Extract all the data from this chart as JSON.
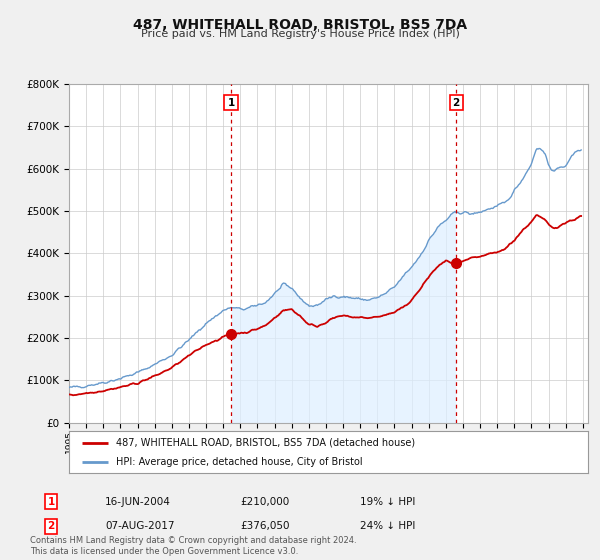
{
  "title": "487, WHITEHALL ROAD, BRISTOL, BS5 7DA",
  "subtitle": "Price paid vs. HM Land Registry's House Price Index (HPI)",
  "legend_entry1": "487, WHITEHALL ROAD, BRISTOL, BS5 7DA (detached house)",
  "legend_entry2": "HPI: Average price, detached house, City of Bristol",
  "annotation1_date": "16-JUN-2004",
  "annotation1_price": 210000,
  "annotation1_pct": "19% ↓ HPI",
  "annotation2_date": "07-AUG-2017",
  "annotation2_price": 376050,
  "annotation2_pct": "24% ↓ HPI",
  "footnote": "Contains HM Land Registry data © Crown copyright and database right 2024.\nThis data is licensed under the Open Government Licence v3.0.",
  "price_paid_color": "#cc0000",
  "hpi_color": "#6699cc",
  "hpi_fill_color": "#ddeeff",
  "background_color": "#f0f0f0",
  "plot_bg_color": "#ffffff",
  "grid_color": "#cccccc",
  "annotation_line_color": "#cc0000",
  "ylim": [
    0,
    800000
  ],
  "yticks": [
    0,
    100000,
    200000,
    300000,
    400000,
    500000,
    600000,
    700000,
    800000
  ],
  "ytick_labels": [
    "£0",
    "£100K",
    "£200K",
    "£300K",
    "£400K",
    "£500K",
    "£600K",
    "£700K",
    "£800K"
  ],
  "xmin": 1995.0,
  "xmax": 2025.3,
  "sale1_x": 2004.46,
  "sale2_x": 2017.6,
  "sale1_y": 210000,
  "sale2_y": 376050,
  "hpi_anchors": [
    [
      1995.0,
      82000
    ],
    [
      1996.0,
      88000
    ],
    [
      1997.0,
      95000
    ],
    [
      1998.0,
      105000
    ],
    [
      1999.0,
      118000
    ],
    [
      2000.0,
      138000
    ],
    [
      2001.0,
      160000
    ],
    [
      2002.0,
      195000
    ],
    [
      2003.0,
      235000
    ],
    [
      2004.0,
      265000
    ],
    [
      2004.5,
      272000
    ],
    [
      2005.0,
      268000
    ],
    [
      2005.5,
      270000
    ],
    [
      2006.0,
      278000
    ],
    [
      2006.5,
      285000
    ],
    [
      2007.0,
      305000
    ],
    [
      2007.5,
      325000
    ],
    [
      2008.0,
      318000
    ],
    [
      2008.5,
      295000
    ],
    [
      2009.0,
      275000
    ],
    [
      2009.5,
      278000
    ],
    [
      2010.0,
      290000
    ],
    [
      2010.5,
      300000
    ],
    [
      2011.0,
      298000
    ],
    [
      2011.5,
      295000
    ],
    [
      2012.0,
      292000
    ],
    [
      2012.5,
      290000
    ],
    [
      2013.0,
      295000
    ],
    [
      2013.5,
      305000
    ],
    [
      2014.0,
      320000
    ],
    [
      2014.5,
      345000
    ],
    [
      2015.0,
      368000
    ],
    [
      2015.5,
      395000
    ],
    [
      2016.0,
      430000
    ],
    [
      2016.5,
      460000
    ],
    [
      2017.0,
      478000
    ],
    [
      2017.5,
      495000
    ],
    [
      2018.0,
      498000
    ],
    [
      2018.5,
      492000
    ],
    [
      2019.0,
      498000
    ],
    [
      2019.5,
      505000
    ],
    [
      2020.0,
      510000
    ],
    [
      2020.5,
      520000
    ],
    [
      2021.0,
      548000
    ],
    [
      2021.5,
      578000
    ],
    [
      2022.0,
      612000
    ],
    [
      2022.3,
      650000
    ],
    [
      2022.5,
      648000
    ],
    [
      2022.8,
      635000
    ],
    [
      2023.0,
      608000
    ],
    [
      2023.3,
      595000
    ],
    [
      2023.6,
      598000
    ],
    [
      2024.0,
      610000
    ],
    [
      2024.3,
      625000
    ],
    [
      2024.6,
      640000
    ],
    [
      2024.9,
      648000
    ]
  ],
  "pp_anchors": [
    [
      1995.0,
      65000
    ],
    [
      1996.0,
      70000
    ],
    [
      1997.0,
      76000
    ],
    [
      1998.0,
      84000
    ],
    [
      1999.0,
      94000
    ],
    [
      2000.0,
      110000
    ],
    [
      2001.0,
      130000
    ],
    [
      2002.0,
      158000
    ],
    [
      2003.0,
      185000
    ],
    [
      2004.0,
      202000
    ],
    [
      2004.46,
      210000
    ],
    [
      2005.0,
      212000
    ],
    [
      2005.5,
      215000
    ],
    [
      2006.0,
      222000
    ],
    [
      2006.5,
      230000
    ],
    [
      2007.0,
      248000
    ],
    [
      2007.5,
      265000
    ],
    [
      2008.0,
      268000
    ],
    [
      2008.5,
      252000
    ],
    [
      2009.0,
      232000
    ],
    [
      2009.5,
      228000
    ],
    [
      2010.0,
      238000
    ],
    [
      2010.5,
      248000
    ],
    [
      2011.0,
      252000
    ],
    [
      2011.5,
      250000
    ],
    [
      2012.0,
      248000
    ],
    [
      2012.5,
      248000
    ],
    [
      2013.0,
      250000
    ],
    [
      2013.5,
      255000
    ],
    [
      2014.0,
      260000
    ],
    [
      2014.5,
      272000
    ],
    [
      2015.0,
      290000
    ],
    [
      2015.5,
      315000
    ],
    [
      2016.0,
      345000
    ],
    [
      2016.5,
      368000
    ],
    [
      2017.0,
      382000
    ],
    [
      2017.6,
      376050
    ],
    [
      2018.0,
      380000
    ],
    [
      2018.5,
      388000
    ],
    [
      2019.0,
      392000
    ],
    [
      2019.5,
      398000
    ],
    [
      2020.0,
      402000
    ],
    [
      2020.5,
      412000
    ],
    [
      2021.0,
      432000
    ],
    [
      2021.5,
      455000
    ],
    [
      2022.0,
      475000
    ],
    [
      2022.3,
      490000
    ],
    [
      2022.5,
      485000
    ],
    [
      2022.8,
      478000
    ],
    [
      2023.0,
      468000
    ],
    [
      2023.3,
      460000
    ],
    [
      2023.6,
      465000
    ],
    [
      2024.0,
      472000
    ],
    [
      2024.3,
      478000
    ],
    [
      2024.6,
      482000
    ],
    [
      2024.9,
      488000
    ]
  ]
}
